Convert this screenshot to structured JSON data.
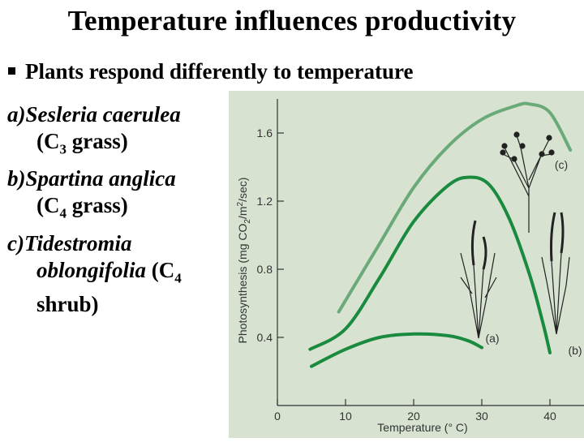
{
  "slide": {
    "title": "Temperature influences productivity",
    "bullet": "Plants respond differently to temperature"
  },
  "species": [
    {
      "letter": "a)",
      "name": "Sesleria caerulea",
      "desc_pre": "(C",
      "desc_sub": "3",
      "desc_post": " grass)"
    },
    {
      "letter": "b)",
      "name": "Spartina anglica",
      "desc_pre": "(C",
      "desc_sub": "4",
      "desc_post": " grass)"
    },
    {
      "letter": "c)",
      "name_line1": "Tidestromia",
      "name_line2": "oblongifolia",
      "desc_pre": " (C",
      "desc_sub": "4",
      "desc_line3": "shrub)"
    }
  ],
  "colors": {
    "panel_bg": "#d7e3d0",
    "curve_a": "#1a8a3f",
    "curve_b": "#1a8a3f",
    "curve_c": "#6aaa78",
    "axis": "#333333"
  },
  "chart_data": {
    "type": "line",
    "xlabel_prefix": "Temperature (",
    "xlabel_unit": "° C)",
    "ylabel_pre": "Photosynthesis (mg CO",
    "ylabel_sub": "2",
    "ylabel_mid": "/m",
    "ylabel_sup": "2",
    "ylabel_post": "/sec)",
    "xlim": [
      0,
      45
    ],
    "ylim": [
      0,
      1.8
    ],
    "x_ticks": [
      0,
      10,
      20,
      30,
      40
    ],
    "y_ticks": [
      0.4,
      0.8,
      1.2,
      1.6
    ],
    "y_tick_labels": [
      "0.4",
      "0.8",
      "1.2",
      "1.6"
    ],
    "x_tick_labels": [
      "0",
      "10",
      "20",
      "30",
      "40"
    ],
    "series": [
      {
        "name": "(a)",
        "x": [
          5,
          10,
          15,
          20,
          25,
          28,
          30
        ],
        "y": [
          0.23,
          0.33,
          0.4,
          0.42,
          0.41,
          0.38,
          0.34
        ]
      },
      {
        "name": "(b)",
        "x": [
          4.8,
          10,
          15,
          20,
          25,
          28,
          31,
          34,
          37,
          39,
          40
        ],
        "y": [
          0.33,
          0.45,
          0.75,
          1.08,
          1.29,
          1.34,
          1.3,
          1.1,
          0.77,
          0.48,
          0.31
        ]
      },
      {
        "name": "(c)",
        "x": [
          9,
          15,
          20,
          25,
          30,
          35,
          37,
          40,
          43
        ],
        "y": [
          0.55,
          0.95,
          1.28,
          1.52,
          1.68,
          1.76,
          1.77,
          1.72,
          1.5
        ]
      }
    ]
  }
}
